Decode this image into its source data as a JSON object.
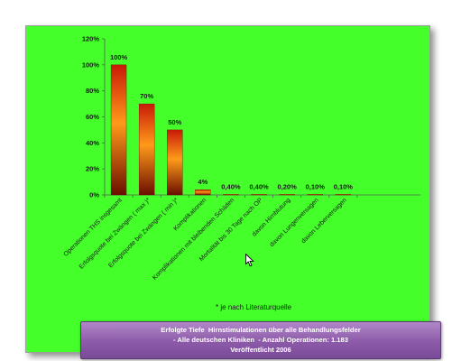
{
  "chart_data": {
    "type": "bar",
    "categories": [
      "Operationen THS insgesamt",
      "Erfolgsquote bei Zwängen ( max )*",
      "Erfolgsquote bei Zwängen ( min )*",
      "Komplikationen",
      "Komplikationen mit bleibenden Schäden",
      "Mortalität bis 30 Tage nach OP",
      "davon Hirnblutung",
      "davon Lungenversagen",
      "davon Leberversagen"
    ],
    "values": [
      100,
      70,
      50,
      4,
      0.4,
      0.4,
      0.2,
      0.1,
      0.1
    ],
    "data_labels": [
      "100%",
      "70%",
      "50%",
      "4%",
      "0,40%",
      "0,40%",
      "0,20%",
      "0,10%",
      "0,10%"
    ],
    "y_ticks": [
      0,
      20,
      40,
      60,
      80,
      100,
      120
    ],
    "y_tick_labels": [
      "0%",
      "20%",
      "40%",
      "60%",
      "80%",
      "100%",
      "120%"
    ],
    "ylim": [
      0,
      120
    ],
    "grid": false,
    "bar_color": "#e23a10",
    "bar_highlight_color": "#ff9a1a",
    "bar_dark_color": "#7a1200"
  },
  "footnote": "* je nach Literaturquelle",
  "caption": {
    "line1": "Erfolgte Tiefe  Hirnstimulationen über alle Behandlungsfelder",
    "line2": "- Alle deutschen Kliniken  - Anzahl Operationen: 1.183",
    "line3": "Veröffentlicht 2006"
  },
  "colors": {
    "background": "#44ff2a",
    "caption_box": "#8c5aa8"
  }
}
